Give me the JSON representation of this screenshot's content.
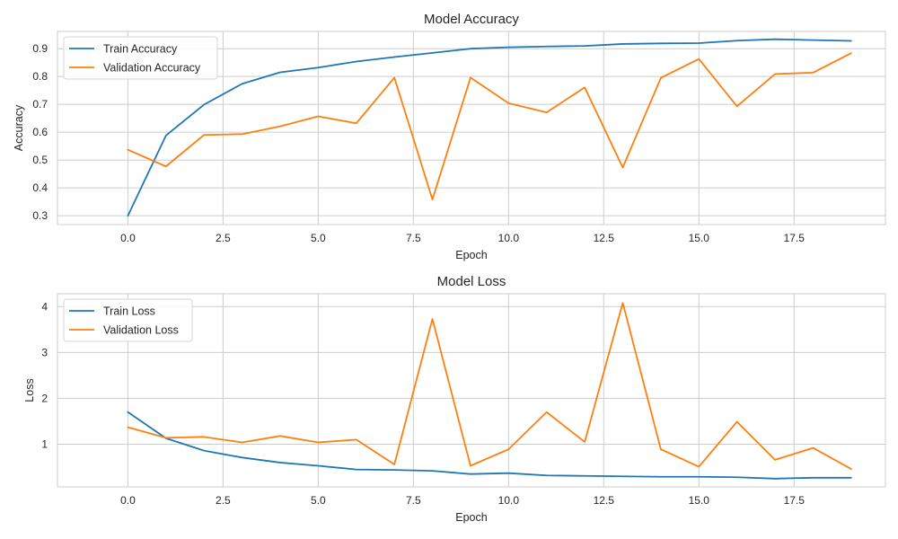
{
  "chart_data": [
    {
      "type": "line",
      "title": "Model Accuracy",
      "xlabel": "Epoch",
      "ylabel": "Accuracy",
      "xlim": [
        -1.85,
        19.9
      ],
      "ylim": [
        0.268,
        0.962
      ],
      "xticks": [
        0.0,
        2.5,
        5.0,
        7.5,
        10.0,
        12.5,
        15.0,
        17.5
      ],
      "xtick_labels": [
        "0.0",
        "2.5",
        "5.0",
        "7.5",
        "10.0",
        "12.5",
        "15.0",
        "17.5"
      ],
      "yticks": [
        0.3,
        0.4,
        0.5,
        0.6,
        0.7,
        0.8,
        0.9
      ],
      "ytick_labels": [
        "0.3",
        "0.4",
        "0.5",
        "0.6",
        "0.7",
        "0.8",
        "0.9"
      ],
      "grid": true,
      "legend_position": "top-left",
      "x": [
        0,
        1,
        2,
        3,
        4,
        5,
        6,
        7,
        8,
        9,
        10,
        11,
        12,
        13,
        14,
        15,
        16,
        17,
        18,
        19
      ],
      "series": [
        {
          "name": "Train Accuracy",
          "color": "#1f77b4",
          "values": [
            0.3,
            0.588,
            0.699,
            0.774,
            0.815,
            0.832,
            0.854,
            0.87,
            0.885,
            0.9,
            0.905,
            0.908,
            0.91,
            0.917,
            0.919,
            0.92,
            0.929,
            0.934,
            0.931,
            0.928
          ]
        },
        {
          "name": "Validation Accuracy",
          "color": "#ff7f0e",
          "values": [
            0.537,
            0.477,
            0.59,
            0.593,
            0.621,
            0.657,
            0.632,
            0.796,
            0.358,
            0.796,
            0.704,
            0.671,
            0.761,
            0.473,
            0.795,
            0.863,
            0.693,
            0.809,
            0.814,
            0.884
          ]
        }
      ]
    },
    {
      "type": "line",
      "title": "Model Loss",
      "xlabel": "Epoch",
      "ylabel": "Loss",
      "xlim": [
        -1.85,
        19.9
      ],
      "ylim": [
        0.07,
        4.28
      ],
      "xticks": [
        0.0,
        2.5,
        5.0,
        7.5,
        10.0,
        12.5,
        15.0,
        17.5
      ],
      "xtick_labels": [
        "0.0",
        "2.5",
        "5.0",
        "7.5",
        "10.0",
        "12.5",
        "15.0",
        "17.5"
      ],
      "yticks": [
        1,
        2,
        3,
        4
      ],
      "ytick_labels": [
        "1",
        "2",
        "3",
        "4"
      ],
      "grid": true,
      "legend_position": "top-left",
      "x": [
        0,
        1,
        2,
        3,
        4,
        5,
        6,
        7,
        8,
        9,
        10,
        11,
        12,
        13,
        14,
        15,
        16,
        17,
        18,
        19
      ],
      "series": [
        {
          "name": "Train Loss",
          "color": "#1f77b4",
          "values": [
            1.7,
            1.13,
            0.86,
            0.71,
            0.6,
            0.53,
            0.45,
            0.44,
            0.42,
            0.35,
            0.37,
            0.32,
            0.31,
            0.3,
            0.29,
            0.29,
            0.28,
            0.25,
            0.27,
            0.27
          ]
        },
        {
          "name": "Validation Loss",
          "color": "#ff7f0e",
          "values": [
            1.37,
            1.14,
            1.16,
            1.04,
            1.18,
            1.04,
            1.1,
            0.56,
            3.73,
            0.53,
            0.89,
            1.7,
            1.05,
            4.08,
            0.89,
            0.51,
            1.49,
            0.66,
            0.92,
            0.46
          ]
        }
      ]
    }
  ]
}
